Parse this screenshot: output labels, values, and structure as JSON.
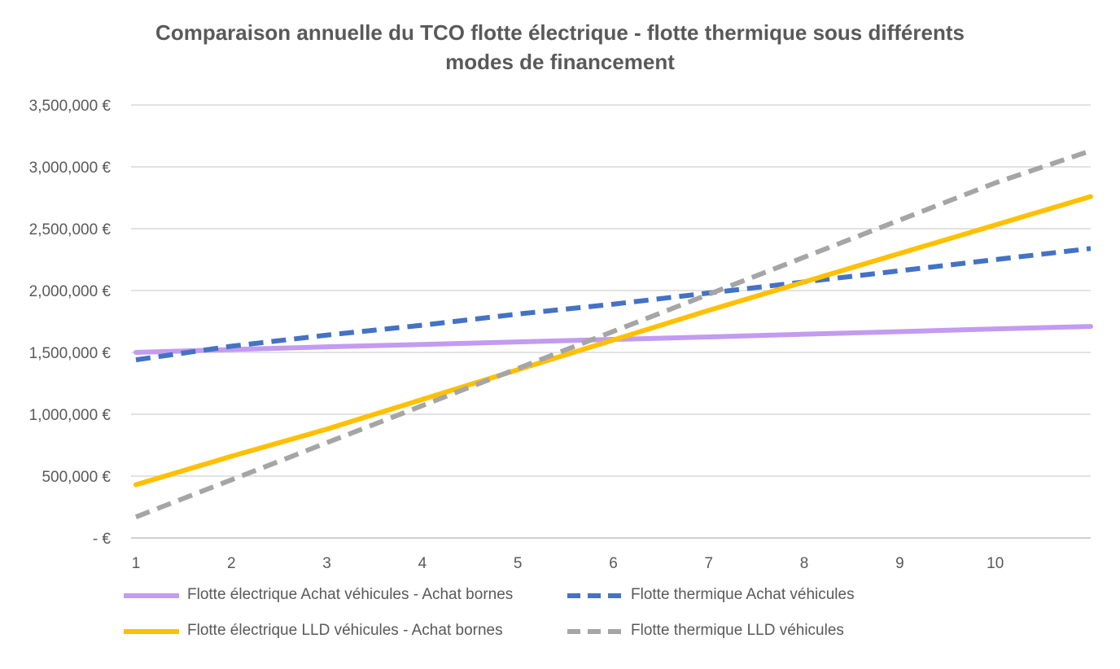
{
  "chart_data": {
    "type": "line",
    "title_lines": [
      "Comparaison  annuelle du TCO flotte électrique - flotte thermique sous différents",
      "modes de financement"
    ],
    "x": [
      1,
      2,
      3,
      4,
      5,
      6,
      7,
      8,
      9,
      10,
      11
    ],
    "x_tick_labels": [
      "1",
      "2",
      "3",
      "4",
      "5",
      "6",
      "7",
      "8",
      "9",
      "10"
    ],
    "y_tick_labels": [
      "-   €",
      "500,000 €",
      "1,000,000 €",
      "1,500,000 €",
      "2,000,000 €",
      "2,500,000 €",
      "3,000,000 €",
      "3,500,000 €"
    ],
    "ylim": [
      0,
      3500000
    ],
    "grid": true,
    "legend_position": "bottom",
    "series": [
      {
        "name": "Flotte électrique Achat véhicules - Achat bornes",
        "color": "#c39bf0",
        "style": "solid",
        "values": [
          1500000,
          1523000,
          1545000,
          1564000,
          1585000,
          1605000,
          1625000,
          1647000,
          1668000,
          1690000,
          1710000
        ]
      },
      {
        "name": "Flotte thermique Achat véhicules",
        "color": "#4472c4",
        "style": "dashed",
        "values": [
          1440000,
          1550000,
          1640000,
          1720000,
          1810000,
          1890000,
          1980000,
          2070000,
          2160000,
          2250000,
          2340000
        ]
      },
      {
        "name": "Flotte électrique LLD véhicules - Achat bornes",
        "color": "#ffc000",
        "style": "solid",
        "values": [
          430000,
          660000,
          880000,
          1120000,
          1360000,
          1600000,
          1840000,
          2070000,
          2300000,
          2530000,
          2760000
        ]
      },
      {
        "name": "Flotte thermique LLD véhicules",
        "color": "#a5a5a5",
        "style": "dashed",
        "values": [
          170000,
          470000,
          770000,
          1070000,
          1370000,
          1670000,
          1970000,
          2270000,
          2570000,
          2870000,
          3130000
        ]
      }
    ]
  }
}
